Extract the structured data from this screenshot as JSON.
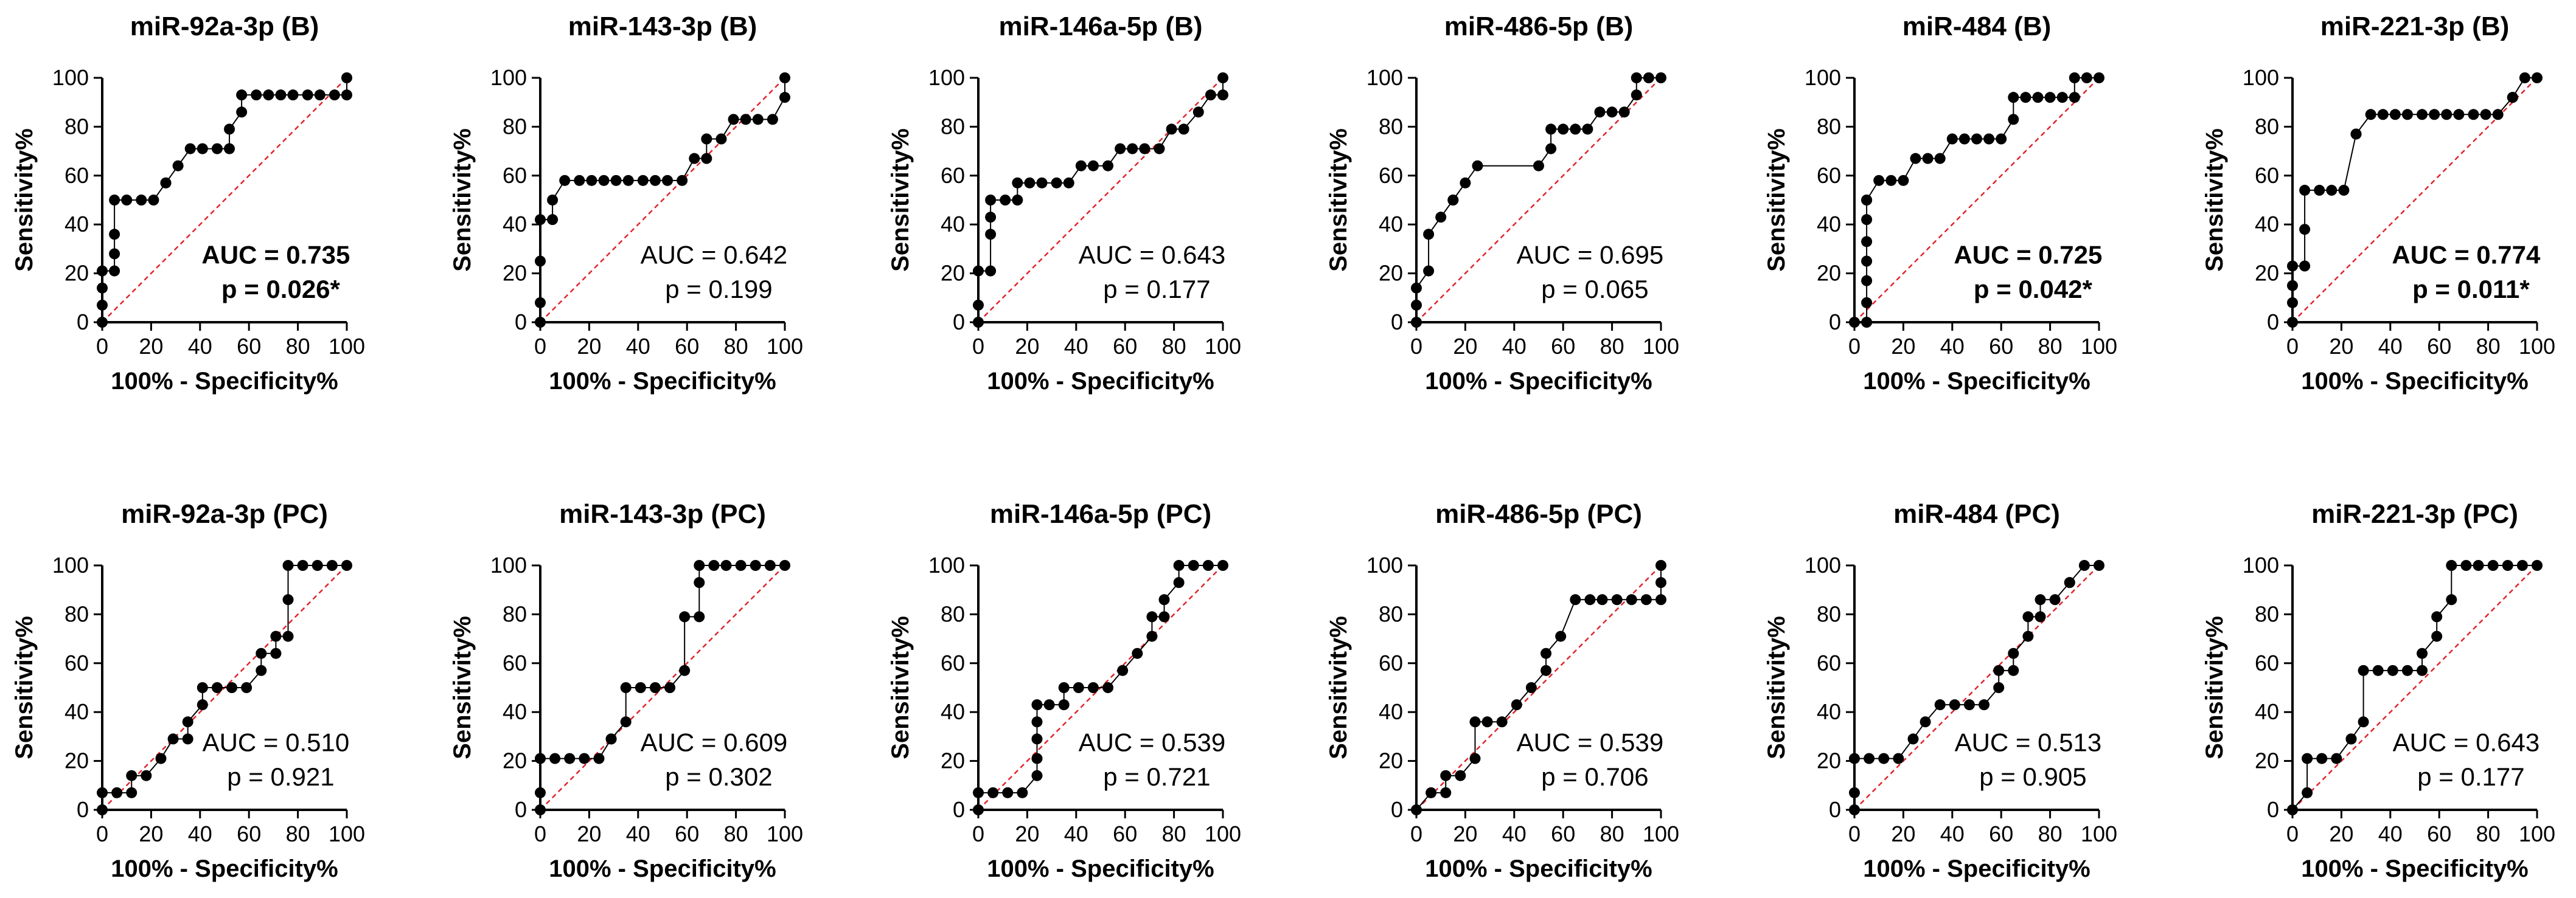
{
  "colors": {
    "point": "#000000",
    "line": "#000000",
    "reference": "#e0242c"
  },
  "chart_data": [
    {
      "type": "scatter",
      "title": "miR-92a-3p (B)",
      "xlabel": "100% - Specificity%",
      "ylabel": "Sensitivity%",
      "xlim": [
        0,
        100
      ],
      "ylim": [
        0,
        100
      ],
      "ticks": [
        "0",
        "20",
        "40",
        "60",
        "80",
        "100"
      ],
      "auc": "AUC = 0.735",
      "p": "p = 0.026*",
      "bold_annotation": true,
      "x": [
        0,
        0,
        0,
        0,
        5,
        5,
        5,
        5,
        10,
        16,
        21,
        26,
        26,
        31,
        36,
        41,
        47,
        52,
        52,
        57,
        57,
        63,
        68,
        73,
        78,
        84,
        89,
        95,
        100,
        100
      ],
      "y": [
        0,
        7,
        14,
        21,
        21,
        28,
        36,
        50,
        50,
        50,
        50,
        57,
        57,
        64,
        71,
        71,
        71,
        71,
        79,
        86,
        93,
        93,
        93,
        93,
        93,
        93,
        93,
        93,
        93,
        100
      ]
    },
    {
      "type": "scatter",
      "title": "miR-143-3p (B)",
      "xlabel": "100% - Specificity%",
      "ylabel": "Sensitivity%",
      "xlim": [
        0,
        100
      ],
      "ylim": [
        0,
        100
      ],
      "ticks": [
        "0",
        "20",
        "40",
        "60",
        "80",
        "100"
      ],
      "auc": "AUC = 0.642",
      "p": "p = 0.199",
      "bold_annotation": false,
      "x": [
        0,
        0,
        0,
        0,
        5,
        5,
        10,
        16,
        21,
        26,
        31,
        36,
        42,
        47,
        52,
        58,
        63,
        68,
        68,
        74,
        79,
        84,
        89,
        95,
        100,
        100
      ],
      "y": [
        0,
        8,
        25,
        42,
        42,
        50,
        58,
        58,
        58,
        58,
        58,
        58,
        58,
        58,
        58,
        58,
        67,
        67,
        75,
        75,
        83,
        83,
        83,
        83,
        92,
        100
      ]
    },
    {
      "type": "scatter",
      "title": "miR-146a-5p (B)",
      "xlabel": "100% - Specificity%",
      "ylabel": "Sensitivity%",
      "xlim": [
        0,
        100
      ],
      "ylim": [
        0,
        100
      ],
      "ticks": [
        "0",
        "20",
        "40",
        "60",
        "80",
        "100"
      ],
      "auc": "AUC = 0.643",
      "p": "p = 0.177",
      "bold_annotation": false,
      "x": [
        0,
        0,
        0,
        5,
        5,
        5,
        5,
        11,
        16,
        16,
        21,
        26,
        32,
        37,
        42,
        47,
        53,
        58,
        63,
        68,
        74,
        79,
        84,
        90,
        95,
        100,
        100
      ],
      "y": [
        0,
        7,
        21,
        21,
        36,
        43,
        50,
        50,
        50,
        57,
        57,
        57,
        57,
        57,
        64,
        64,
        64,
        71,
        71,
        71,
        71,
        79,
        79,
        86,
        93,
        93,
        100
      ]
    },
    {
      "type": "scatter",
      "title": "miR-486-5p (B)",
      "xlabel": "100% - Specificity%",
      "ylabel": "Sensitivity%",
      "xlim": [
        0,
        100
      ],
      "ylim": [
        0,
        100
      ],
      "ticks": [
        "0",
        "20",
        "40",
        "60",
        "80",
        "100"
      ],
      "auc": "AUC = 0.695",
      "p": "p = 0.065",
      "bold_annotation": false,
      "x": [
        0,
        0,
        0,
        5,
        5,
        10,
        15,
        15,
        20,
        25,
        50,
        55,
        55,
        60,
        65,
        70,
        75,
        80,
        85,
        90,
        90,
        95,
        100
      ],
      "y": [
        0,
        7,
        14,
        21,
        36,
        43,
        50,
        50,
        57,
        64,
        64,
        71,
        79,
        79,
        79,
        79,
        86,
        86,
        86,
        93,
        100,
        100,
        100
      ]
    },
    {
      "type": "scatter",
      "title": "miR-484 (B)",
      "xlabel": "100% - Specificity%",
      "ylabel": "Sensitivity%",
      "xlim": [
        0,
        100
      ],
      "ylim": [
        0,
        100
      ],
      "ticks": [
        "0",
        "20",
        "40",
        "60",
        "80",
        "100"
      ],
      "auc": "AUC = 0.725",
      "p": "p = 0.042*",
      "bold_annotation": true,
      "x": [
        0,
        5,
        5,
        5,
        5,
        5,
        5,
        5,
        5,
        10,
        15,
        20,
        25,
        30,
        35,
        40,
        45,
        50,
        55,
        60,
        65,
        65,
        70,
        75,
        80,
        85,
        90,
        90,
        95,
        100
      ],
      "y": [
        0,
        0,
        8,
        17,
        25,
        33,
        42,
        50,
        50,
        58,
        58,
        58,
        67,
        67,
        67,
        75,
        75,
        75,
        75,
        75,
        83,
        92,
        92,
        92,
        92,
        92,
        92,
        100,
        100,
        100
      ]
    },
    {
      "type": "scatter",
      "title": "miR-221-3p (B)",
      "xlabel": "100% - Specificity%",
      "ylabel": "Sensitivity%",
      "xlim": [
        0,
        100
      ],
      "ylim": [
        0,
        100
      ],
      "ticks": [
        "0",
        "20",
        "40",
        "60",
        "80",
        "100"
      ],
      "auc": "AUC = 0.774",
      "p": "p = 0.011*",
      "bold_annotation": true,
      "x": [
        0,
        0,
        0,
        0,
        5,
        5,
        5,
        11,
        16,
        21,
        26,
        26,
        32,
        37,
        42,
        47,
        53,
        58,
        63,
        68,
        74,
        79,
        84,
        90,
        90,
        95,
        100
      ],
      "y": [
        0,
        8,
        15,
        23,
        23,
        38,
        54,
        54,
        54,
        54,
        77,
        77,
        85,
        85,
        85,
        85,
        85,
        85,
        85,
        85,
        85,
        85,
        85,
        92,
        92,
        100,
        100
      ]
    },
    {
      "type": "scatter",
      "title": "miR-92a-3p (PC)",
      "xlabel": "100% - Specificity%",
      "ylabel": "Sensitivity%",
      "xlim": [
        0,
        100
      ],
      "ylim": [
        0,
        100
      ],
      "ticks": [
        "0",
        "20",
        "40",
        "60",
        "80",
        "100"
      ],
      "auc": "AUC = 0.510",
      "p": "p = 0.921",
      "bold_annotation": false,
      "x": [
        0,
        0,
        6,
        12,
        12,
        18,
        24,
        29,
        35,
        35,
        41,
        41,
        47,
        53,
        59,
        65,
        65,
        71,
        71,
        76,
        76,
        76,
        82,
        88,
        94,
        100
      ],
      "y": [
        0,
        7,
        7,
        7,
        14,
        14,
        21,
        29,
        29,
        36,
        43,
        50,
        50,
        50,
        50,
        57,
        64,
        64,
        71,
        71,
        86,
        100,
        100,
        100,
        100,
        100
      ]
    },
    {
      "type": "scatter",
      "title": "miR-143-3p (PC)",
      "xlabel": "100% - Specificity%",
      "ylabel": "Sensitivity%",
      "xlim": [
        0,
        100
      ],
      "ylim": [
        0,
        100
      ],
      "ticks": [
        "0",
        "20",
        "40",
        "60",
        "80",
        "100"
      ],
      "auc": "AUC = 0.609",
      "p": "p = 0.302",
      "bold_annotation": false,
      "x": [
        0,
        0,
        0,
        6,
        12,
        18,
        24,
        29,
        29,
        35,
        35,
        41,
        47,
        53,
        59,
        59,
        65,
        65,
        65,
        71,
        76,
        82,
        88,
        94,
        100
      ],
      "y": [
        0,
        7,
        21,
        21,
        21,
        21,
        21,
        29,
        29,
        36,
        50,
        50,
        50,
        50,
        57,
        79,
        79,
        93,
        100,
        100,
        100,
        100,
        100,
        100,
        100
      ]
    },
    {
      "type": "scatter",
      "title": "miR-146a-5p (PC)",
      "xlabel": "100% - Specificity%",
      "ylabel": "Sensitivity%",
      "xlim": [
        0,
        100
      ],
      "ylim": [
        0,
        100
      ],
      "ticks": [
        "0",
        "20",
        "40",
        "60",
        "80",
        "100"
      ],
      "auc": "AUC = 0.539",
      "p": "p = 0.721",
      "bold_annotation": false,
      "x": [
        0,
        0,
        6,
        12,
        18,
        24,
        24,
        24,
        24,
        24,
        29,
        35,
        35,
        41,
        47,
        53,
        59,
        65,
        71,
        71,
        76,
        76,
        82,
        82,
        88,
        94,
        100
      ],
      "y": [
        0,
        7,
        7,
        7,
        7,
        14,
        21,
        29,
        36,
        43,
        43,
        43,
        50,
        50,
        50,
        50,
        57,
        64,
        71,
        79,
        79,
        86,
        93,
        100,
        100,
        100,
        100
      ]
    },
    {
      "type": "scatter",
      "title": "miR-486-5p (PC)",
      "xlabel": "100% - Specificity%",
      "ylabel": "Sensitivity%",
      "xlim": [
        0,
        100
      ],
      "ylim": [
        0,
        100
      ],
      "ticks": [
        "0",
        "20",
        "40",
        "60",
        "80",
        "100"
      ],
      "auc": "AUC = 0.539",
      "p": "p = 0.706",
      "bold_annotation": false,
      "x": [
        0,
        6,
        12,
        12,
        18,
        24,
        24,
        29,
        35,
        41,
        47,
        53,
        53,
        59,
        65,
        71,
        76,
        82,
        88,
        94,
        100,
        100,
        100
      ],
      "y": [
        0,
        7,
        7,
        14,
        14,
        21,
        36,
        36,
        36,
        43,
        50,
        57,
        64,
        71,
        86,
        86,
        86,
        86,
        86,
        86,
        86,
        93,
        100
      ]
    },
    {
      "type": "scatter",
      "title": "miR-484 (PC)",
      "xlabel": "100% - Specificity%",
      "ylabel": "Sensitivity%",
      "xlim": [
        0,
        100
      ],
      "ylim": [
        0,
        100
      ],
      "ticks": [
        "0",
        "20",
        "40",
        "60",
        "80",
        "100"
      ],
      "auc": "AUC = 0.513",
      "p": "p = 0.905",
      "bold_annotation": false,
      "x": [
        0,
        0,
        0,
        6,
        12,
        18,
        24,
        29,
        35,
        41,
        47,
        53,
        59,
        59,
        65,
        65,
        71,
        71,
        76,
        76,
        82,
        88,
        88,
        94,
        100
      ],
      "y": [
        0,
        7,
        21,
        21,
        21,
        21,
        29,
        36,
        43,
        43,
        43,
        43,
        50,
        57,
        57,
        64,
        71,
        79,
        79,
        86,
        86,
        93,
        93,
        100,
        100
      ]
    },
    {
      "type": "scatter",
      "title": "miR-221-3p (PC)",
      "xlabel": "100% - Specificity%",
      "ylabel": "Sensitivity%",
      "xlim": [
        0,
        100
      ],
      "ylim": [
        0,
        100
      ],
      "ticks": [
        "0",
        "20",
        "40",
        "60",
        "80",
        "100"
      ],
      "auc": "AUC = 0.643",
      "p": "p = 0.177",
      "bold_annotation": false,
      "x": [
        0,
        6,
        6,
        12,
        18,
        24,
        24,
        29,
        29,
        35,
        41,
        47,
        53,
        53,
        59,
        59,
        65,
        65,
        71,
        76,
        82,
        88,
        94,
        100
      ],
      "y": [
        0,
        7,
        21,
        21,
        21,
        29,
        29,
        36,
        57,
        57,
        57,
        57,
        57,
        64,
        71,
        79,
        86,
        100,
        100,
        100,
        100,
        100,
        100,
        100
      ]
    }
  ]
}
